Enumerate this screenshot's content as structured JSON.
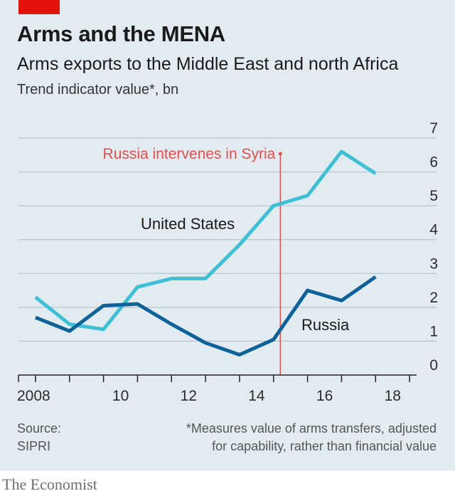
{
  "header": {
    "title": "Arms and the MENA",
    "subtitle": "Arms exports to the Middle East and north Africa",
    "units": "Trend indicator value*, bn"
  },
  "footer": {
    "source_label": "Source:",
    "source_name": "SIPRI",
    "footnote_line1": "*Measures value of arms transfers, adjusted",
    "footnote_line2": "for capability, rather than financial value",
    "brand": "The Economist"
  },
  "colors": {
    "background": "#e1ebf0",
    "us_series": "#3ebfd6",
    "russia_series": "#0f6299",
    "annotation": "#e34e4e",
    "red_tag": "#e3120b"
  },
  "chart_data": {
    "type": "line",
    "title": "Arms and the MENA",
    "subtitle": "Arms exports to the Middle East and north Africa",
    "ylabel": "Trend indicator value*, bn",
    "xlim": [
      2007.5,
      2019.5
    ],
    "ylim": [
      0,
      7
    ],
    "x_ticks": [
      2008,
      2010,
      2012,
      2014,
      2016,
      2018
    ],
    "x_tick_labels": [
      "2008",
      "10",
      "12",
      "14",
      "16",
      "18"
    ],
    "y_ticks": [
      0,
      1,
      2,
      3,
      4,
      5,
      6,
      7
    ],
    "grid": "horizontal",
    "y_axis_side": "right",
    "series": [
      {
        "name": "United States",
        "color": "#3ebfd6",
        "x": [
          2008,
          2009,
          2010,
          2011,
          2012,
          2013,
          2014,
          2015,
          2016,
          2017,
          2018
        ],
        "values": [
          2.3,
          1.5,
          1.35,
          2.6,
          2.85,
          2.85,
          3.85,
          5.0,
          5.3,
          6.6,
          5.95
        ]
      },
      {
        "name": "Russia",
        "color": "#0f6299",
        "x": [
          2008,
          2009,
          2010,
          2011,
          2012,
          2013,
          2014,
          2015,
          2016,
          2017,
          2018
        ],
        "values": [
          1.7,
          1.3,
          2.05,
          2.1,
          1.5,
          0.95,
          0.6,
          1.05,
          2.5,
          2.2,
          2.9
        ]
      }
    ],
    "annotations": [
      {
        "label": "Russia intervenes in Syria",
        "x": 2015.2
      }
    ]
  }
}
